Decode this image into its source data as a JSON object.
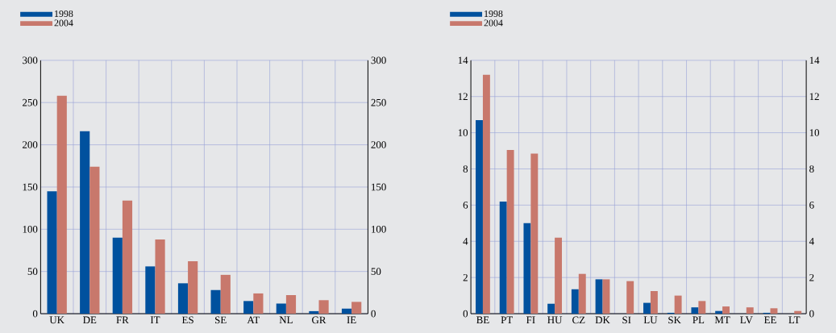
{
  "chart_data": [
    {
      "type": "bar",
      "categories": [
        "UK",
        "DE",
        "FR",
        "IT",
        "ES",
        "SE",
        "AT",
        "NL",
        "GR",
        "IE"
      ],
      "series": [
        {
          "name": "1998",
          "color": "#00519e",
          "values": [
            145,
            216,
            90,
            56,
            36,
            28,
            15,
            12,
            3,
            6
          ]
        },
        {
          "name": "2004",
          "color": "#c8786c",
          "values": [
            258,
            174,
            134,
            88,
            62,
            46,
            24,
            22,
            16,
            14
          ]
        }
      ],
      "ylim": [
        0,
        300
      ],
      "yticks": [
        0,
        50,
        100,
        150,
        200,
        250,
        300
      ],
      "y2lim": [
        0,
        300
      ],
      "y2ticks": [
        0,
        50,
        100,
        150,
        200,
        250,
        300
      ],
      "grid": true,
      "legend": "top left"
    },
    {
      "type": "bar",
      "categories": [
        "BE",
        "PT",
        "FI",
        "HU",
        "CZ",
        "DK",
        "SI",
        "LU",
        "SK",
        "PL",
        "MT",
        "LV",
        "EE",
        "LT"
      ],
      "series": [
        {
          "name": "1998",
          "color": "#00519e",
          "values": [
            10.7,
            6.2,
            5.0,
            0.55,
            1.35,
            1.9,
            0,
            0.6,
            0.05,
            0.35,
            0.15,
            0,
            0.05,
            0
          ]
        },
        {
          "name": "2004",
          "color": "#c8786c",
          "values": [
            13.2,
            9.05,
            8.85,
            4.2,
            2.2,
            1.9,
            1.8,
            1.25,
            1.0,
            0.7,
            0.4,
            0.35,
            0.3,
            0.15
          ]
        }
      ],
      "ylim": [
        0,
        14
      ],
      "yticks": [
        0,
        2,
        4,
        6,
        8,
        10,
        12,
        14
      ],
      "y2lim": [
        0,
        14
      ],
      "y2ticks": [
        0,
        2,
        4,
        6,
        8,
        10,
        12,
        14
      ],
      "grid": true,
      "legend": "top left"
    }
  ]
}
